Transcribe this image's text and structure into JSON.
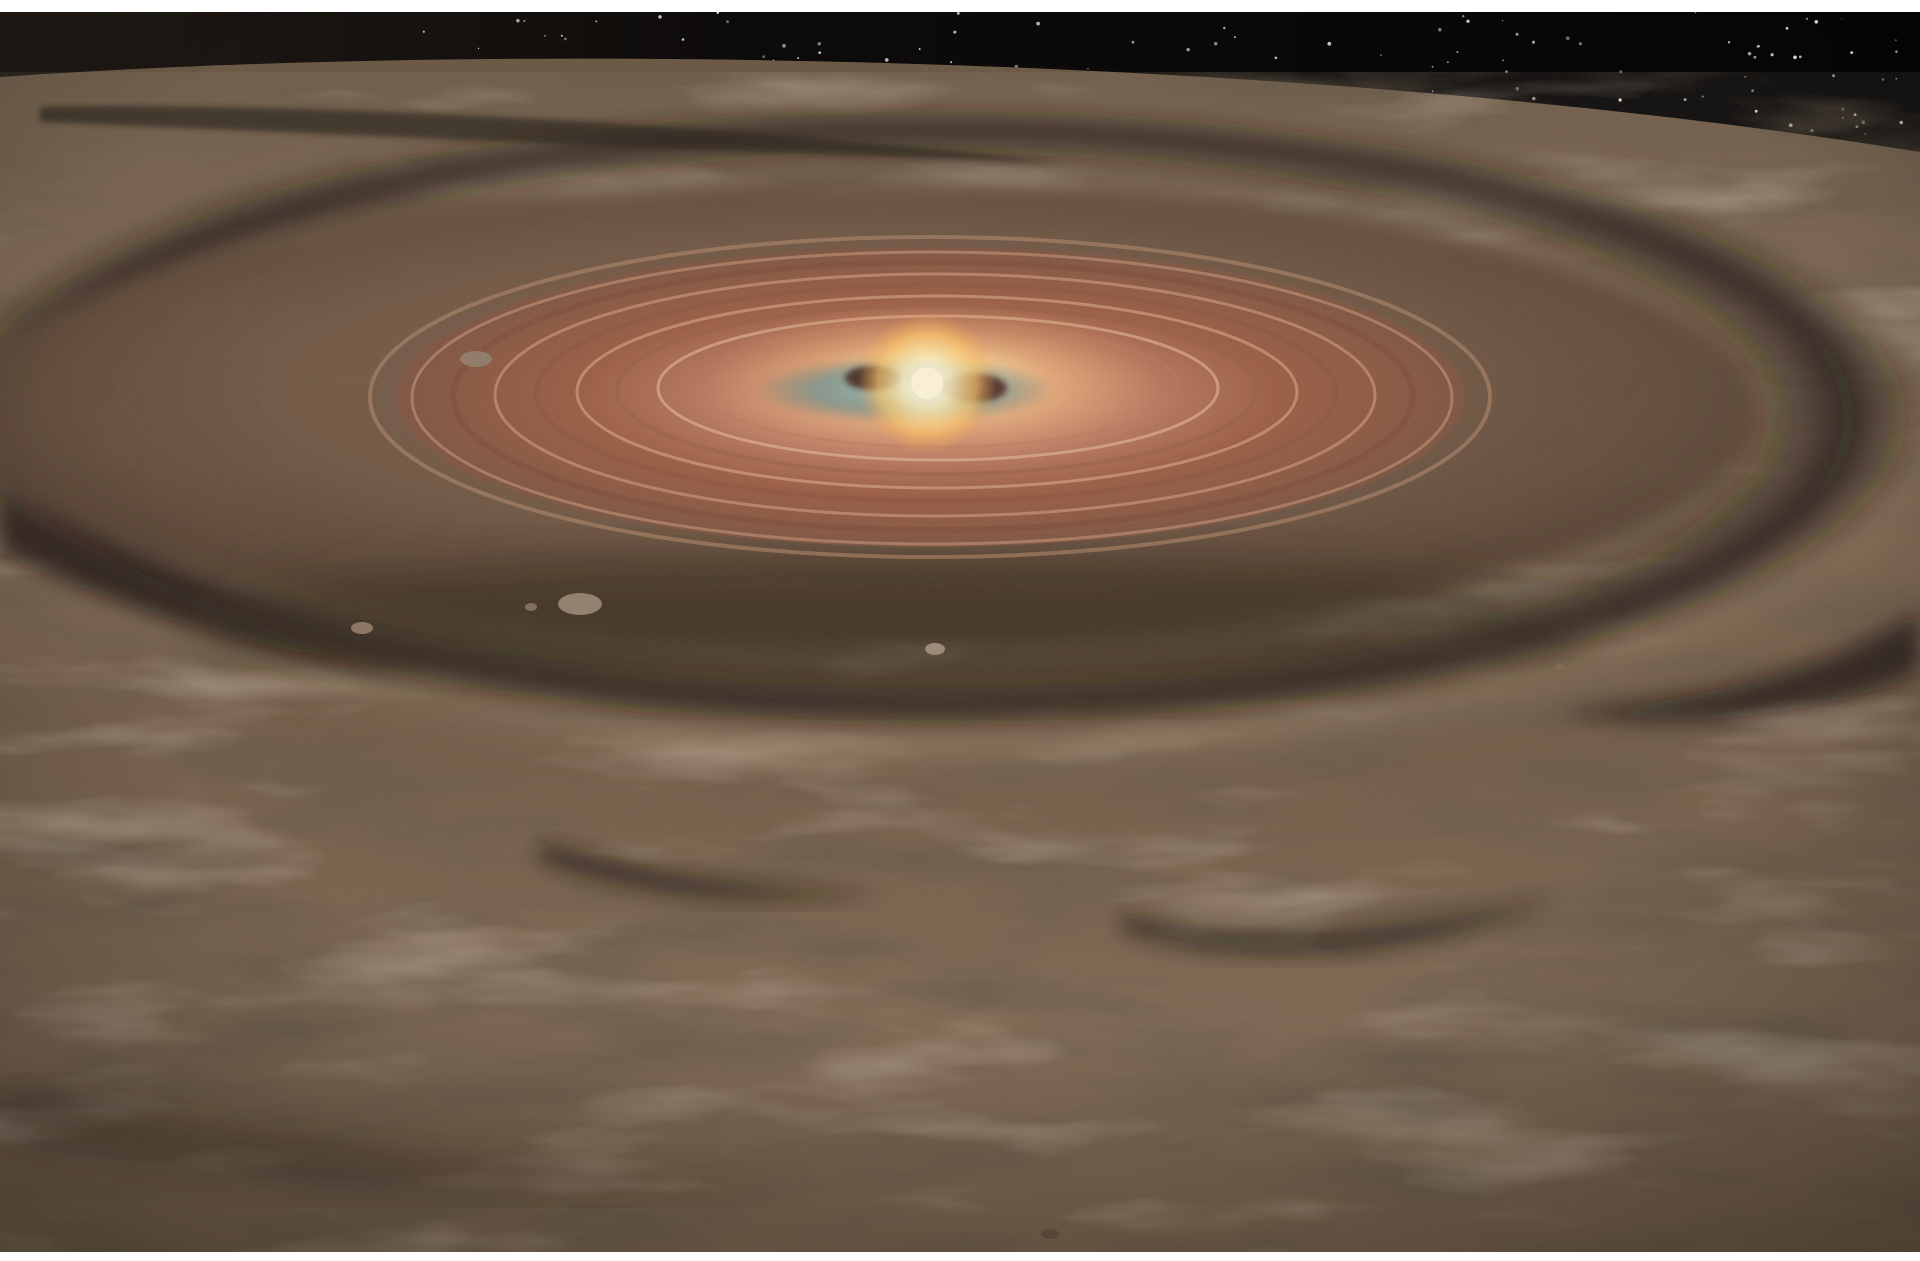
{
  "image": {
    "subject": "protoplanetary-disk",
    "colors": {
      "space": "#060607",
      "dust_light": "#8e7a62",
      "dust_mid": "#6f5a44",
      "dust_dark": "#2e2219",
      "ring_copper": "#9a5a40",
      "ring_pale": "#c9987a",
      "star_core": "#fff6d8",
      "star_glow": "#f3c98f",
      "inner_teal": "#5f8f95"
    }
  }
}
